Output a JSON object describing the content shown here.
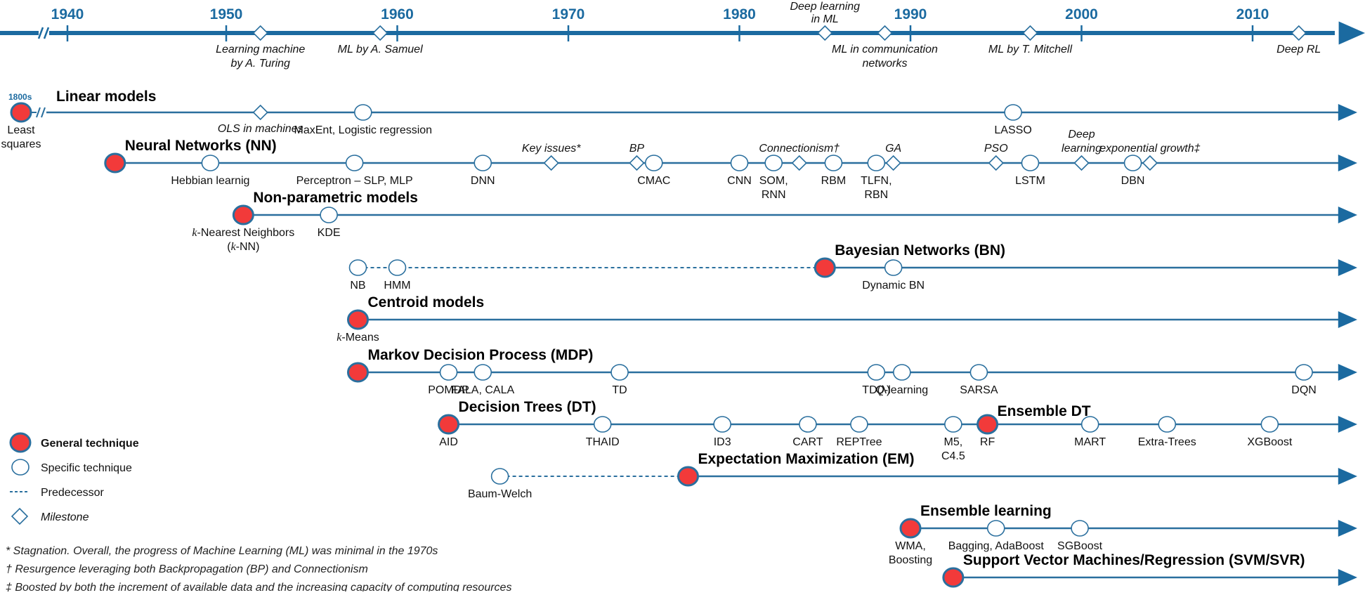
{
  "colors": {
    "axis": "#1b6aa0",
    "line": "#2a6f9e",
    "general_fill": "#f23a3a",
    "node_stroke": "#2a6f9e",
    "text": "#111111"
  },
  "chart_data": {
    "type": "timeline",
    "title": "",
    "axis": {
      "years": [
        1940,
        1950,
        1960,
        1970,
        1980,
        1990,
        2000,
        2010
      ],
      "break_before": 1940,
      "milestones": [
        {
          "year": 1952,
          "label": [
            "Learning machine",
            "by A. Turing"
          ],
          "position": "below"
        },
        {
          "year": 1959,
          "label": [
            "ML by A. Samuel"
          ],
          "position": "below"
        },
        {
          "year": 1985,
          "label": [
            "Deep learning",
            "in ML"
          ],
          "position": "above"
        },
        {
          "year": 1988.5,
          "label": [
            "ML in communication",
            "networks"
          ],
          "position": "below"
        },
        {
          "year": 1997,
          "label": [
            "ML by T. Mitchell"
          ],
          "position": "below"
        },
        {
          "year": 2012.7,
          "label": [
            "Deep RL"
          ],
          "position": "below"
        }
      ]
    },
    "tracks": [
      {
        "title": "Linear models",
        "prefix": "1800s",
        "start_label": [
          "Least",
          "squares"
        ],
        "start_year": 1805,
        "broken_start": true,
        "nodes": [
          {
            "type": "milestone",
            "year": 1952,
            "label": [
              "OLS in machines"
            ],
            "italic": true
          },
          {
            "type": "specific",
            "year": 1958,
            "label": [
              "MaxEnt, Logistic regression"
            ]
          },
          {
            "type": "specific",
            "year": 1996,
            "label": [
              "LASSO"
            ]
          }
        ]
      },
      {
        "title": "Neural Networks (NN)",
        "start_year": 1943,
        "nodes": [
          {
            "type": "specific",
            "year": 1949,
            "label": [
              "Hebbian learnig"
            ]
          },
          {
            "type": "specific",
            "year": 1957.5,
            "label": [
              "Perceptron – SLP, MLP"
            ]
          },
          {
            "type": "specific",
            "year": 1965,
            "label": [
              "DNN"
            ]
          },
          {
            "type": "milestone",
            "year": 1969,
            "label_above": [
              "Key issues*"
            ]
          },
          {
            "type": "milestone",
            "year": 1974,
            "label_above": [
              "BP"
            ]
          },
          {
            "type": "specific",
            "year": 1975,
            "label": [
              "CMAC"
            ]
          },
          {
            "type": "specific",
            "year": 1980,
            "label": [
              "CNN"
            ]
          },
          {
            "type": "specific",
            "year": 1982,
            "label": [
              "SOM,",
              "RNN"
            ]
          },
          {
            "type": "milestone",
            "year": 1983.5,
            "label_above": [
              "Connectionism†"
            ]
          },
          {
            "type": "specific",
            "year": 1985.5,
            "label": [
              "RBM"
            ]
          },
          {
            "type": "specific",
            "year": 1988,
            "label": [
              "TLFN,",
              "RBN"
            ]
          },
          {
            "type": "milestone",
            "year": 1989,
            "label_above": [
              "GA"
            ]
          },
          {
            "type": "milestone",
            "year": 1995,
            "label_above": [
              "PSO"
            ]
          },
          {
            "type": "specific",
            "year": 1997,
            "label": [
              "LSTM"
            ]
          },
          {
            "type": "milestone",
            "year": 2000,
            "label_above": [
              "Deep",
              "learning"
            ]
          },
          {
            "type": "specific",
            "year": 2003,
            "label": [
              "DBN"
            ]
          },
          {
            "type": "milestone",
            "year": 2004,
            "label_above": [
              "exponential growth‡"
            ]
          }
        ]
      },
      {
        "title": "Non-parametric models",
        "start_year": 1951,
        "start_label": [
          "k-Nearest Neighbors",
          "(k-NN)"
        ],
        "nodes": [
          {
            "type": "specific",
            "year": 1956,
            "label": [
              "KDE"
            ]
          }
        ]
      },
      {
        "title": "Bayesian Networks (BN)",
        "start_year": 1985,
        "predecessors": [
          {
            "year": 1957.7,
            "label": [
              "NB"
            ]
          },
          {
            "year": 1960,
            "label": [
              "HMM"
            ]
          }
        ],
        "nodes": [
          {
            "type": "specific",
            "year": 1989,
            "label": [
              "Dynamic BN"
            ]
          }
        ]
      },
      {
        "title": "Centroid models",
        "start_year": 1957.7,
        "start_label": [
          "k-Means"
        ],
        "nodes": []
      },
      {
        "title": "Markov Decision Process (MDP)",
        "start_year": 1957.7,
        "nodes": [
          {
            "type": "specific",
            "year": 1963,
            "label": [
              "POMDP"
            ]
          },
          {
            "type": "specific",
            "year": 1965,
            "label": [
              "FALA, CALA"
            ]
          },
          {
            "type": "specific",
            "year": 1973,
            "label": [
              "TD"
            ]
          },
          {
            "type": "specific",
            "year": 1988,
            "label": [
              "TD(λ)"
            ]
          },
          {
            "type": "specific",
            "year": 1989.5,
            "label": [
              "Q-learning"
            ]
          },
          {
            "type": "specific",
            "year": 1994,
            "label": [
              "SARSA"
            ]
          },
          {
            "type": "specific",
            "year": 2013,
            "label": [
              "DQN"
            ]
          }
        ]
      },
      {
        "title": "Decision Trees (DT)",
        "start_year": 1963,
        "start_label": [
          "AID"
        ],
        "nodes": [
          {
            "type": "specific",
            "year": 1972,
            "label": [
              "THAID"
            ]
          },
          {
            "type": "specific",
            "year": 1979,
            "label": [
              "ID3"
            ]
          },
          {
            "type": "specific",
            "year": 1984,
            "label": [
              "CART"
            ]
          },
          {
            "type": "specific",
            "year": 1987,
            "label": [
              "REPTree"
            ]
          },
          {
            "type": "specific",
            "year": 1992.5,
            "label": [
              "M5,",
              "C4.5"
            ]
          },
          {
            "type": "general",
            "year": 1994.5,
            "label": [
              "RF"
            ],
            "title": "Ensemble DT"
          },
          {
            "type": "specific",
            "year": 2000.5,
            "label": [
              "MART"
            ]
          },
          {
            "type": "specific",
            "year": 2005,
            "label": [
              "Extra-Trees"
            ]
          },
          {
            "type": "specific",
            "year": 2011,
            "label": [
              "XGBoost"
            ]
          }
        ]
      },
      {
        "title": "Expectation Maximization (EM)",
        "start_year": 1977,
        "predecessors": [
          {
            "year": 1966,
            "label": [
              "Baum-Welch"
            ]
          }
        ],
        "nodes": []
      },
      {
        "title": "Ensemble learning",
        "start_year": 1990,
        "start_label": [
          "WMA,",
          "Boosting"
        ],
        "nodes": [
          {
            "type": "specific",
            "year": 1995,
            "label": [
              "Bagging, AdaBoost"
            ]
          },
          {
            "type": "specific",
            "year": 1999.9,
            "label": [
              "SGBoost"
            ]
          }
        ]
      },
      {
        "title": "Support Vector Machines/Regression (SVM/SVR)",
        "start_year": 1992.5,
        "nodes": []
      }
    ],
    "legend": [
      {
        "symbol": "general",
        "label": "General technique",
        "bold": true
      },
      {
        "symbol": "specific",
        "label": "Specific technique"
      },
      {
        "symbol": "predecessor",
        "label": "Predecessor"
      },
      {
        "symbol": "milestone",
        "label": "Milestone",
        "italic": true
      }
    ],
    "footnotes": [
      "* Stagnation. Overall,  the progress of  Machine Learning (ML) was minimal in the 1970s",
      "† Resurgence leveraging both Backpropagation (BP) and Connectionism",
      "‡ Boosted by both the increment of available data and the increasing capacity of computing  resources"
    ]
  }
}
